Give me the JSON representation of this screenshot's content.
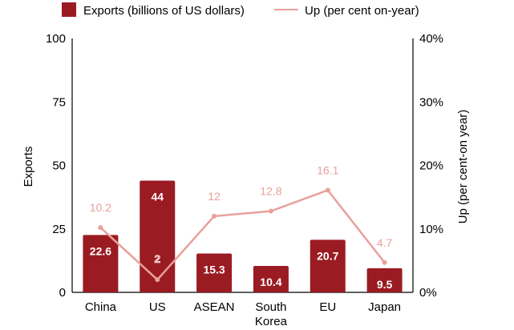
{
  "chart_data": {
    "type": "bar+line",
    "title": "",
    "categories": [
      "China",
      "US",
      "ASEAN",
      "South Korea",
      "EU",
      "Japan"
    ],
    "category_lines": [
      [
        "China"
      ],
      [
        "US"
      ],
      [
        "ASEAN"
      ],
      [
        "South",
        "Korea"
      ],
      [
        "EU"
      ],
      [
        "Japan"
      ]
    ],
    "series": [
      {
        "name": "Exports (billions of US dollars)",
        "type": "bar",
        "axis": "left",
        "values": [
          22.6,
          44,
          15.3,
          10.4,
          20.7,
          9.5
        ],
        "labels": [
          "22.6",
          "44",
          "15.3",
          "10.4",
          "20.7",
          "9.5"
        ],
        "color": "#9b1b22"
      },
      {
        "name": "Up (per cent on-year)",
        "type": "line",
        "axis": "right",
        "values": [
          10.2,
          2,
          12,
          12.8,
          16.1,
          4.7
        ],
        "labels": [
          "10.2",
          "2",
          "12",
          "12.8",
          "16.1",
          "4.7"
        ],
        "color": "#e8a09b"
      }
    ],
    "ylabel_left": "Exports",
    "ylabel_right": "Up (per cent-on year)",
    "ylim_left": [
      0,
      100
    ],
    "ylim_right": [
      0,
      40
    ],
    "yticks_left": [
      "0",
      "25",
      "50",
      "75",
      "100"
    ],
    "yticks_right": [
      "0%",
      "10%",
      "20%",
      "30%",
      "40%"
    ],
    "legend_position": "top",
    "grid": false
  }
}
